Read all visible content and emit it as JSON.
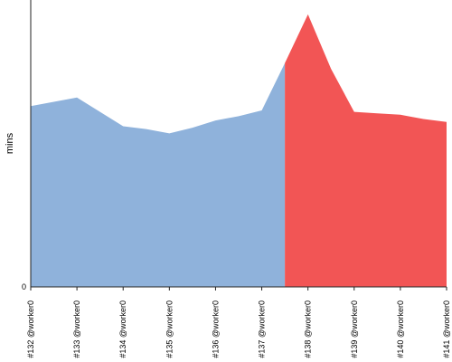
{
  "chart_data": {
    "type": "area",
    "ylabel": "mins",
    "ylim": [
      0,
      100
    ],
    "y_ticks": [
      0
    ],
    "categories": [
      "#132 @worker0",
      "#133 @worker0",
      "#134 @worker0",
      "#135 @worker0",
      "#136 @worker0",
      "#137 @worker0",
      "#138 @worker0",
      "#139 @worker0",
      "#140 @worker0",
      "#141 @worker0"
    ],
    "x": [
      0,
      0.5,
      1,
      1.5,
      2,
      2.5,
      3,
      3.5,
      4,
      4.5,
      5,
      5.5,
      6,
      6.5,
      7,
      7.5,
      8,
      8.5,
      9
    ],
    "values": [
      63,
      64.5,
      66,
      61,
      56,
      55,
      53.5,
      55.5,
      58,
      59.5,
      61.5,
      78,
      95,
      76,
      61,
      60.5,
      60,
      58.5,
      57.5
    ],
    "split_x": 5.5,
    "colors": {
      "before": "#8fb2db",
      "after": "#f25555"
    },
    "grid": false
  }
}
